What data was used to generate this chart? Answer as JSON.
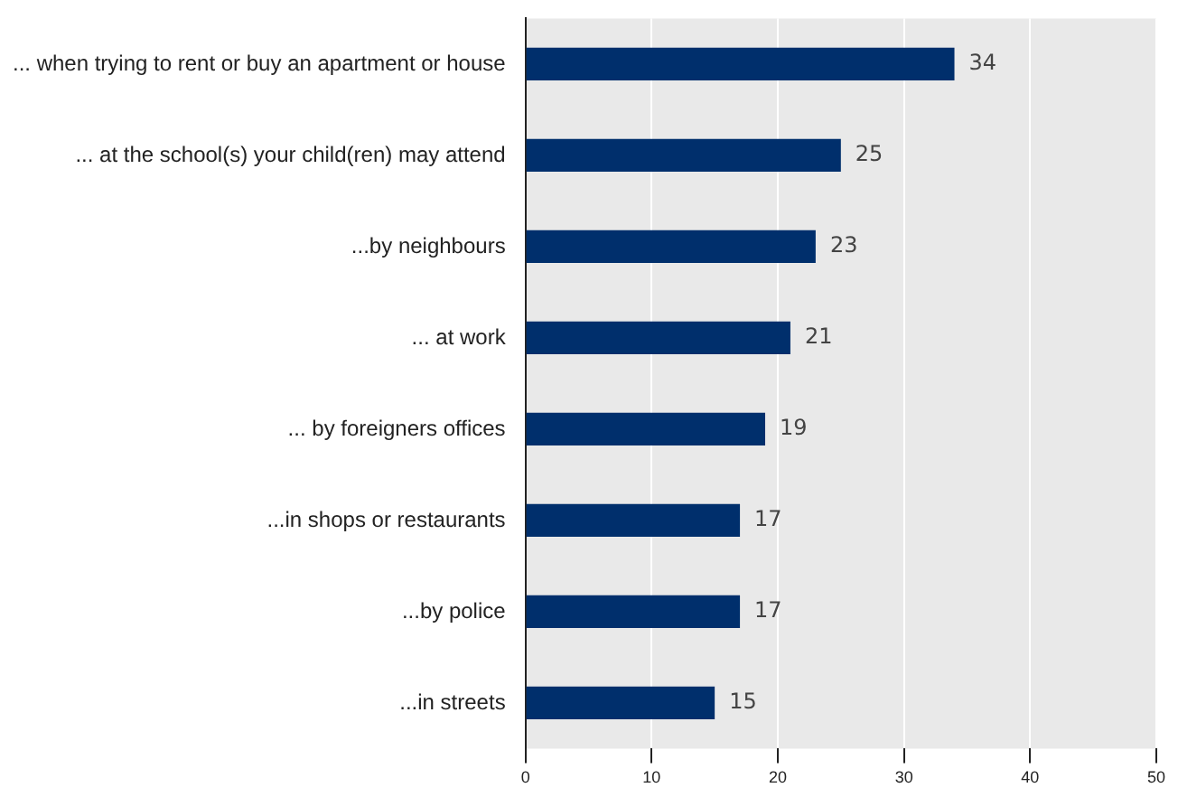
{
  "chart_data": {
    "type": "bar",
    "orientation": "horizontal",
    "categories": [
      "... when trying to rent or buy an apartment or house",
      "... at the school(s) your child(ren) may attend",
      "...by neighbours",
      "... at work",
      "... by foreigners offices",
      "...in shops or restaurants",
      "...by police",
      "...in streets"
    ],
    "values": [
      34,
      25,
      23,
      21,
      19,
      17,
      17,
      15
    ],
    "color": "#002f6c",
    "xlim": [
      0,
      50
    ],
    "xticks": [
      0,
      10,
      20,
      30,
      40,
      50
    ],
    "grid": "x",
    "data_labels": true
  }
}
